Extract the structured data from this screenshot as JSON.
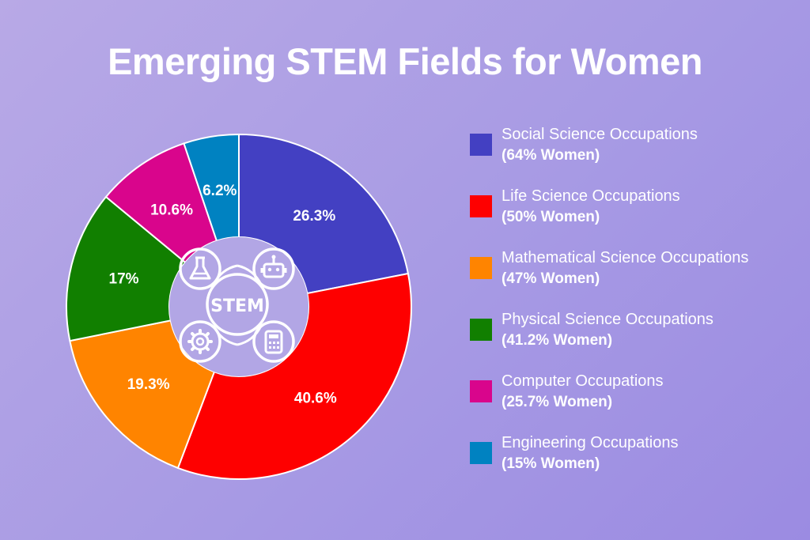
{
  "title": "Emerging STEM Fields for Women",
  "center": {
    "text": "STEM"
  },
  "icons": [
    "flask-icon",
    "robot-icon",
    "gear-icon",
    "calculator-icon"
  ],
  "chart_data": {
    "type": "pie",
    "title": "Emerging STEM Fields for Women",
    "donut": true,
    "slices": [
      {
        "label": "Social Science Occupations",
        "sublabel": "(64% Women)",
        "value": 26.3,
        "display": "26.3%",
        "color": "#4340c2"
      },
      {
        "label": "Life Science Occupations",
        "sublabel": "(50% Women)",
        "value": 40.6,
        "display": "40.6%",
        "color": "#fe0000"
      },
      {
        "label": "Mathematical Science Occupations",
        "sublabel": "(47% Women)",
        "value": 19.3,
        "display": "19.3%",
        "color": "#ff8400"
      },
      {
        "label": "Physical Science Occupations",
        "sublabel": "(41.2% Women)",
        "value": 17,
        "display": "17%",
        "color": "#117f00"
      },
      {
        "label": "Computer Occupations",
        "sublabel": "(25.7% Women)",
        "value": 10.6,
        "display": "10.6%",
        "color": "#d9058c"
      },
      {
        "label": "Engineering Occupations",
        "sublabel": "(15% Women)",
        "value": 6.2,
        "display": "6.2%",
        "color": "#0082c1"
      }
    ],
    "legend_position": "right"
  }
}
